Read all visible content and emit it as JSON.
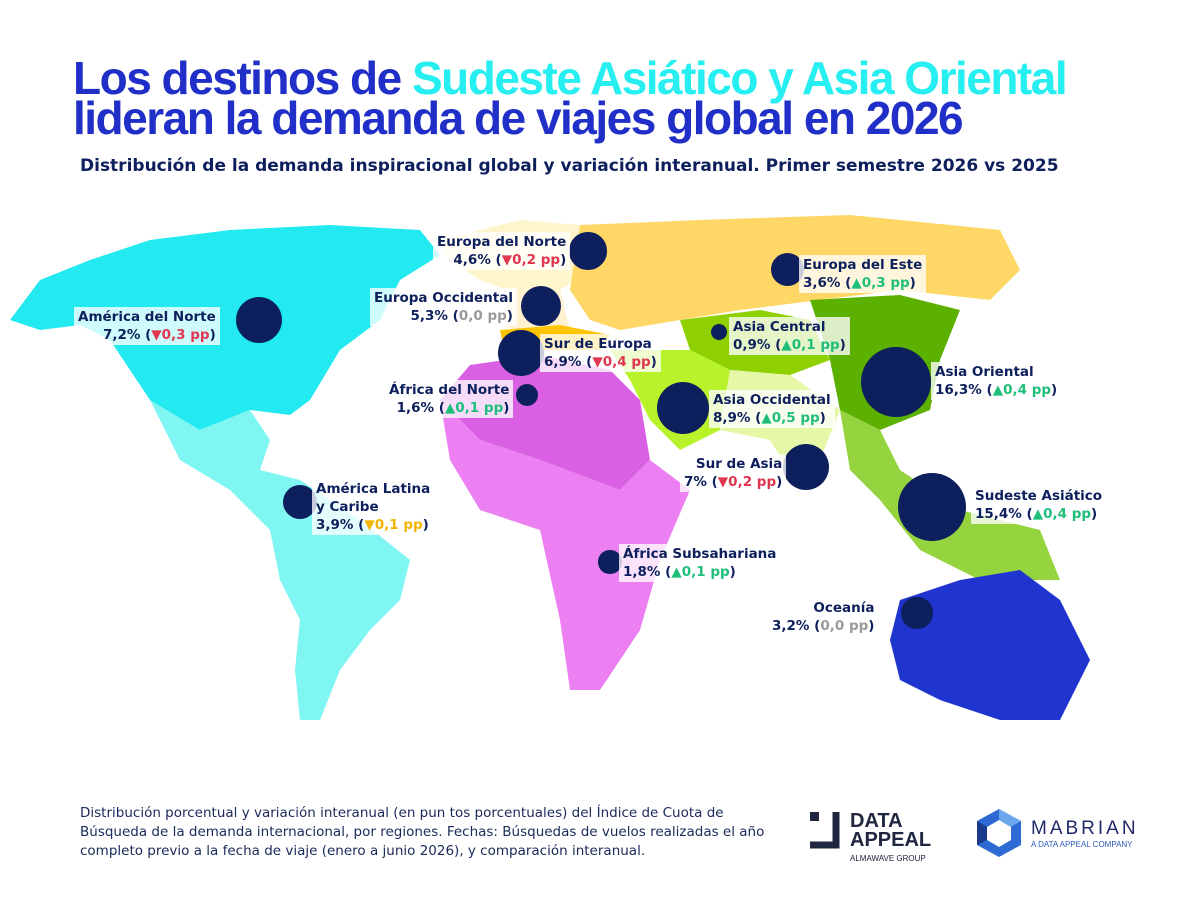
{
  "title": {
    "line1_a": "Los destinos de ",
    "line1_b": "Sudeste Asiático y Asia Oriental",
    "line2": "lideran la demanda de viajes global en 2026"
  },
  "subtitle": "Distribución de la demanda inspiracional global y variación interanual. Primer semestre 2026 vs 2025",
  "colors": {
    "title": "#1f2fc7",
    "highlight": "#27eef0",
    "bubble": "#0d1f5c",
    "up": "#1fbf7a",
    "down": "#e0364f",
    "flat": "#9a9a9a",
    "small_down": "#f2b400"
  },
  "regions": [
    {
      "name": "Europa del Norte",
      "share": "4,6%",
      "change": "▼0,2 pp",
      "trend": "down",
      "value": 4.6
    },
    {
      "name": "Europa del Este",
      "share": "3,6%",
      "change": "▲0,3 pp",
      "trend": "up",
      "value": 3.6
    },
    {
      "name": "América del Norte",
      "share": "7,2%",
      "change": "▼0,3 pp",
      "trend": "down",
      "value": 7.2
    },
    {
      "name": "Europa Occidental",
      "share": "5,3%",
      "change": "0,0 pp",
      "trend": "flat",
      "value": 5.3
    },
    {
      "name": "Sur de Europa",
      "share": "6,9%",
      "change": "▼0,4 pp",
      "trend": "down",
      "value": 6.9
    },
    {
      "name": "Asia Central",
      "share": "0,9%",
      "change": "▲0,1 pp",
      "trend": "up",
      "value": 0.9
    },
    {
      "name": "Asia Oriental",
      "share": "16,3%",
      "change": "▲0,4 pp",
      "trend": "up",
      "value": 16.3
    },
    {
      "name": "África del Norte",
      "share": "1,6%",
      "change": "▲0,1 pp",
      "trend": "up",
      "value": 1.6
    },
    {
      "name": "Asia Occidental",
      "share": "8,9%",
      "change": "▲0,5 pp",
      "trend": "up",
      "value": 8.9
    },
    {
      "name": "Sur de Asia",
      "share": "7%",
      "change": "▼0,2 pp",
      "trend": "down",
      "value": 7
    },
    {
      "name": "Sudeste Asiático",
      "share": "15,4%",
      "change": "▲0,4 pp",
      "trend": "up",
      "value": 15.4
    },
    {
      "name": "América Latina",
      "name2": "y Caribe",
      "share": "3,9%",
      "change": "▼0,1 pp",
      "trend": "warn",
      "value": 3.9
    },
    {
      "name": "África Subsahariana",
      "share": "1,8%",
      "change": "▲0,1 pp",
      "trend": "up",
      "value": 1.8
    },
    {
      "name": "Oceanía",
      "share": "3,2%",
      "change": "0,0 pp",
      "trend": "flat",
      "value": 3.2
    }
  ],
  "footnote": "Distribución porcentual y variación interanual (en pun tos porcentuales) del Índice de Cuota de Búsqueda de la demanda internacional, por regiones. Fechas: Búsquedas de vuelos realizadas el año completo previo a la fecha de viaje (enero a junio 2026), y comparación interanual.",
  "logos": {
    "data_appeal": "DATA APPEAL",
    "data_appeal_sub": "ALMAWAVE GROUP",
    "mabrian": "MABRIAN",
    "mabrian_sub": "A DATA APPEAL COMPANY"
  }
}
